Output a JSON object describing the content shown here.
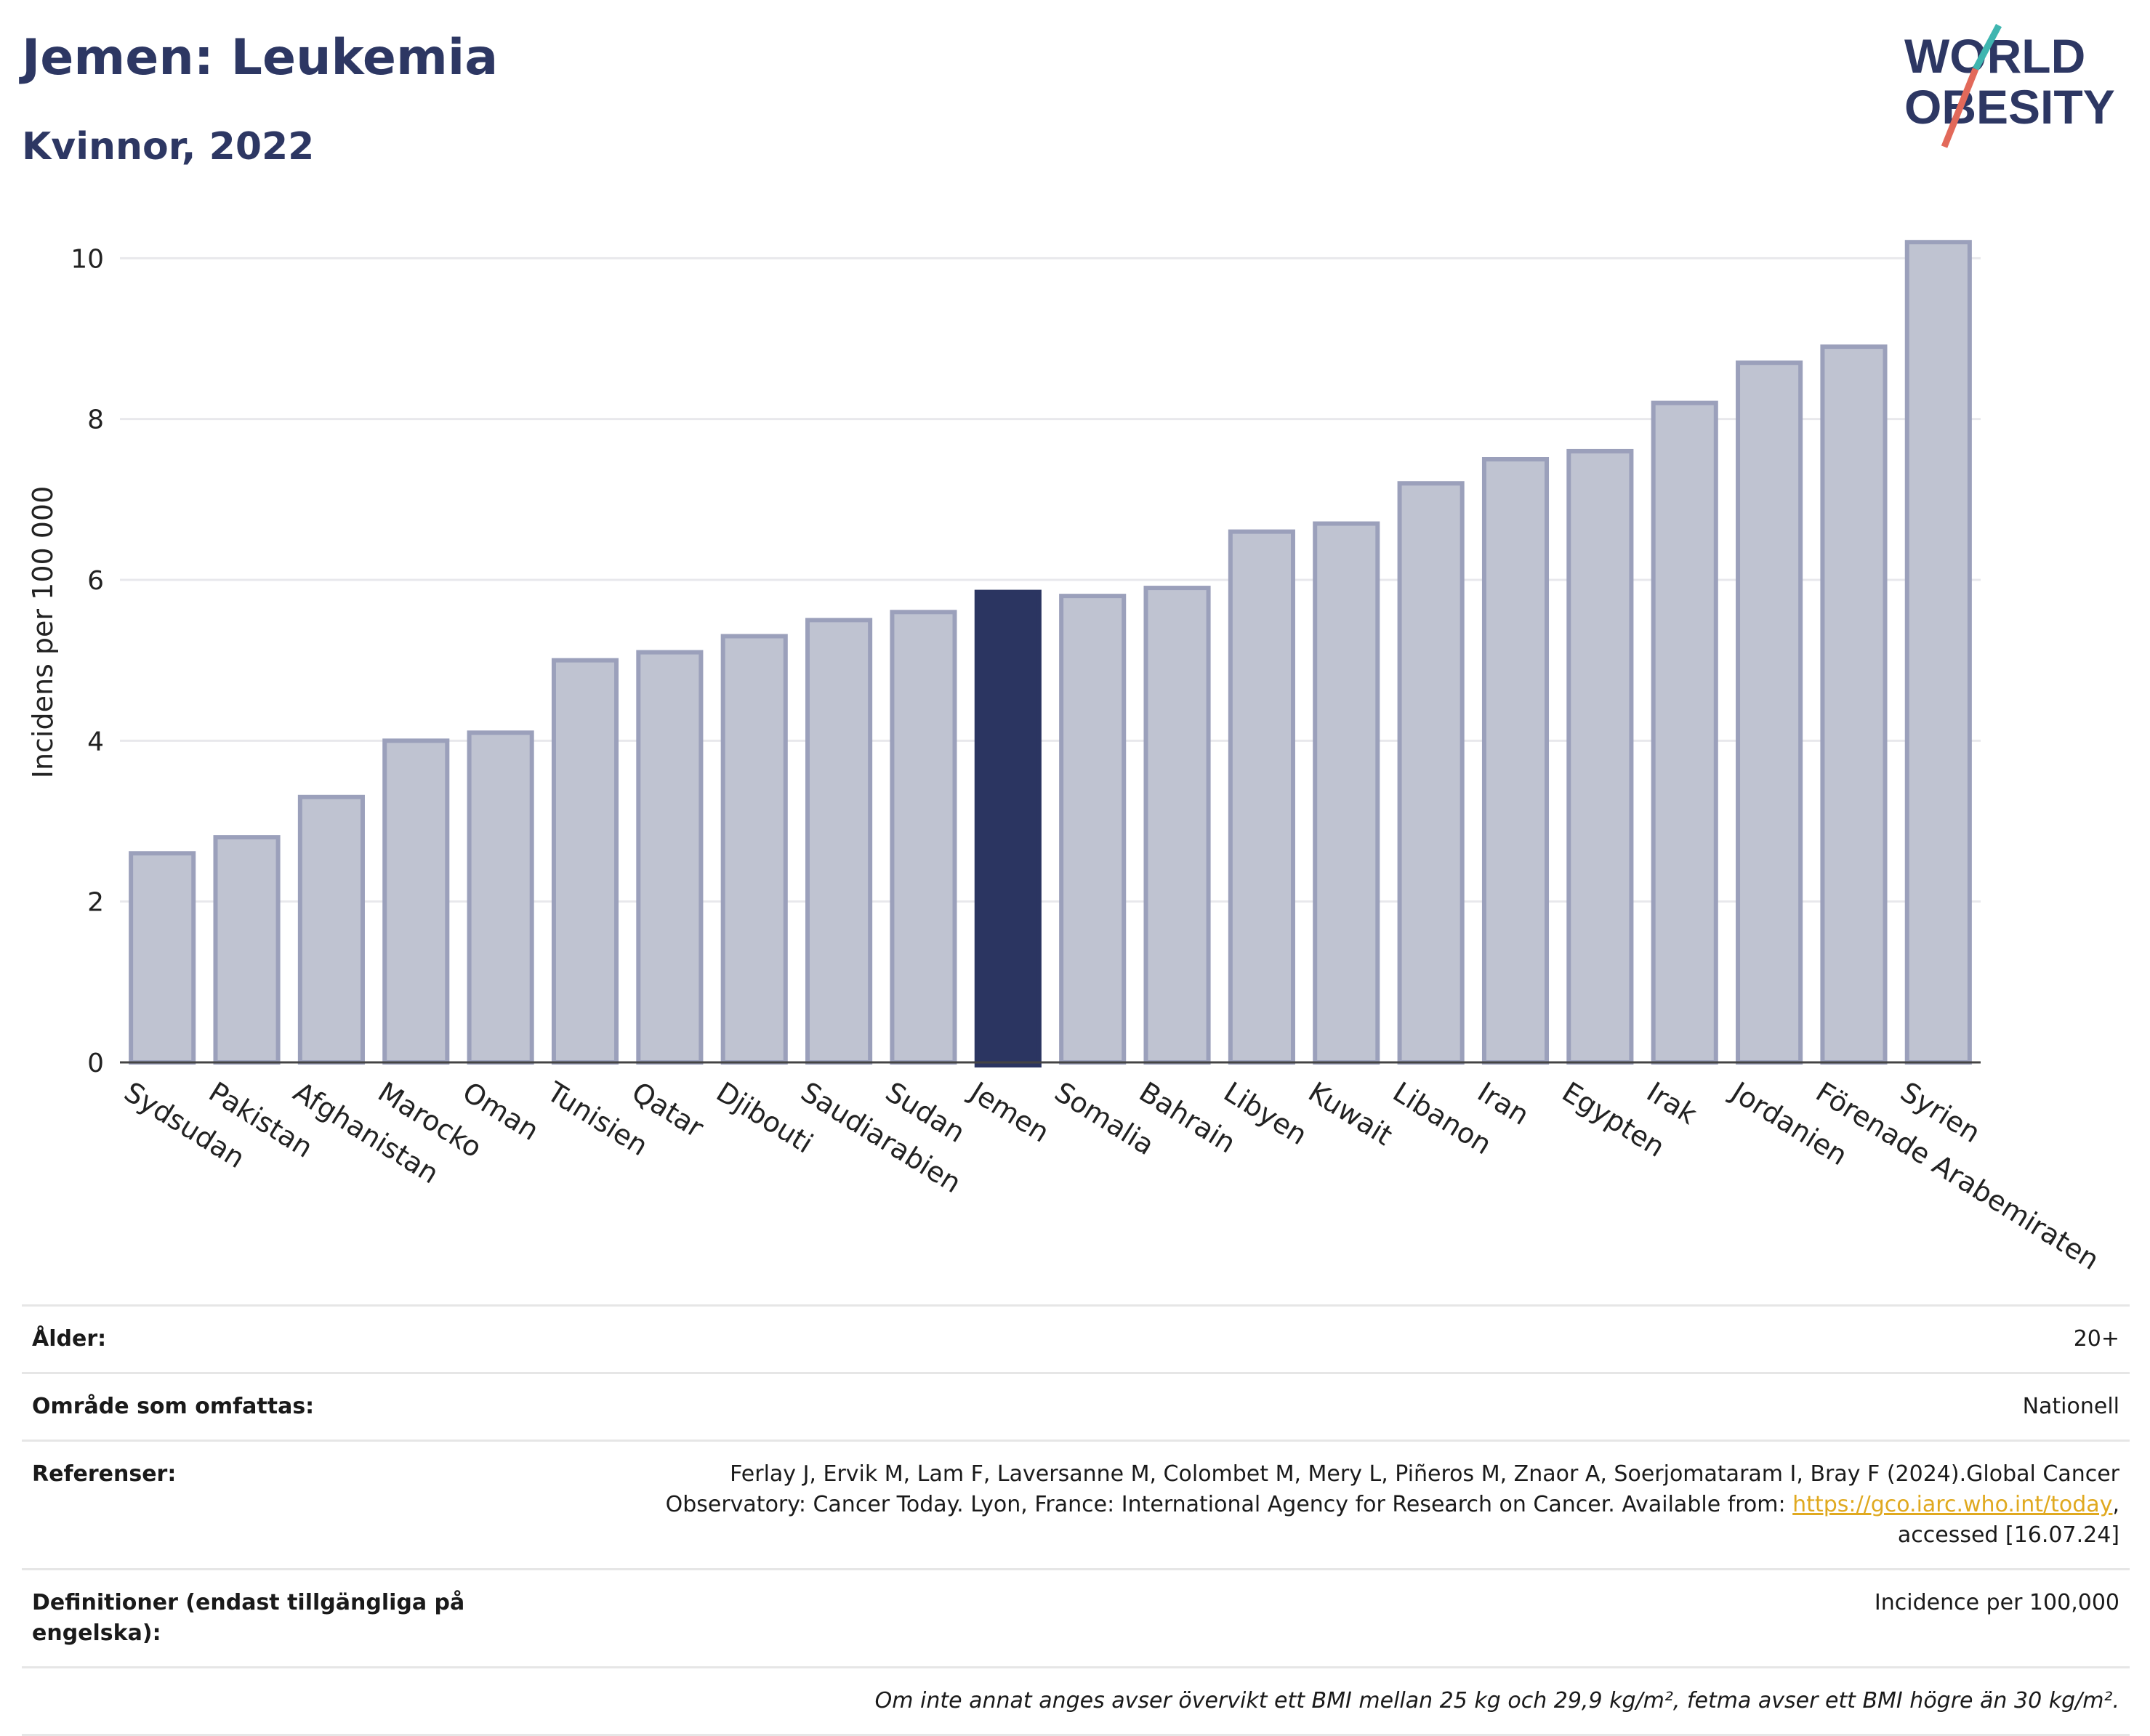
{
  "header": {
    "title": "Jemen: Leukemia",
    "subtitle": "Kvinnor, 2022"
  },
  "logo": {
    "line1": "WORLD",
    "line2": "OBESITY"
  },
  "chart_data": {
    "type": "bar",
    "ylabel": "Incidens per 100 000",
    "ylim": [
      0,
      10.5
    ],
    "yticks": [
      0,
      2,
      4,
      6,
      8,
      10
    ],
    "grid": true,
    "highlight": "Jemen",
    "colors": {
      "bar": "#bfc3d1",
      "bar_edge": "#9ba0bb",
      "highlight": "#2b3561"
    },
    "categories": [
      "Sydsudan",
      "Pakistan",
      "Afghanistan",
      "Marocko",
      "Oman",
      "Tunisien",
      "Qatar",
      "Djibouti",
      "Saudiarabien",
      "Sudan",
      "Jemen",
      "Somalia",
      "Bahrain",
      "Libyen",
      "Kuwait",
      "Libanon",
      "Iran",
      "Egypten",
      "Irak",
      "Jordanien",
      "Förenade Arabemiraten",
      "Syrien"
    ],
    "values": [
      2.6,
      2.8,
      3.3,
      4.0,
      4.1,
      5.0,
      5.1,
      5.3,
      5.5,
      5.6,
      5.85,
      5.8,
      5.9,
      6.6,
      6.7,
      7.2,
      7.5,
      7.6,
      8.2,
      8.7,
      8.9,
      10.2
    ]
  },
  "meta": {
    "age_label": "Ålder:",
    "age_value": "20+",
    "area_label": "Område som omfattas:",
    "area_value": "Nationell",
    "ref_label": "Referenser:",
    "ref_text_1": "Ferlay J, Ervik M, Lam F, Laversanne M, Colombet M, Mery L, Piñeros M, Znaor A, Soerjomataram I, Bray F (2024).Global Cancer",
    "ref_text_2": "Observatory: Cancer Today. Lyon, France: International Agency for Research on Cancer. Available from: ",
    "ref_link": "https://gco.iarc.who.int/today",
    "ref_text_3": "accessed [16.07.24]",
    "def_label": "Definitioner (endast tillgängliga på engelska):",
    "def_value": "Incidence per 100,000",
    "note": "Om inte annat anges avser övervikt ett BMI mellan 25 kg och 29,9 kg/m², fetma avser ett BMI högre än 30 kg/m²."
  }
}
